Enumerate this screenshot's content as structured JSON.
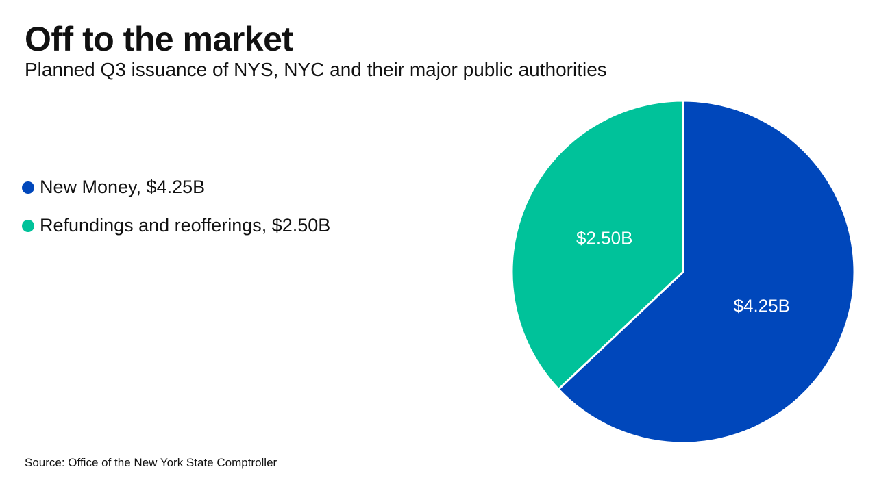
{
  "title": "Off to the market",
  "subtitle": "Planned Q3 issuance of NYS, NYC and their major public authorities",
  "source": "Source: Office of the New York State Comptroller",
  "legend": [
    {
      "label": "New Money, $4.25B",
      "color": "#0047BB"
    },
    {
      "label": "Refundings and reofferings, $2.50B",
      "color": "#00C29A"
    }
  ],
  "chart_data": {
    "type": "pie",
    "title": "Off to the market",
    "subtitle": "Planned Q3 issuance of NYS, NYC and their major public authorities",
    "legend_position": "left",
    "slices": [
      {
        "name": "New Money",
        "value": 4.25,
        "unit": "$B",
        "label": "$4.25B",
        "color": "#0047BB"
      },
      {
        "name": "Refundings and reofferings",
        "value": 2.5,
        "unit": "$B",
        "label": "$2.50B",
        "color": "#00C29A"
      }
    ]
  }
}
